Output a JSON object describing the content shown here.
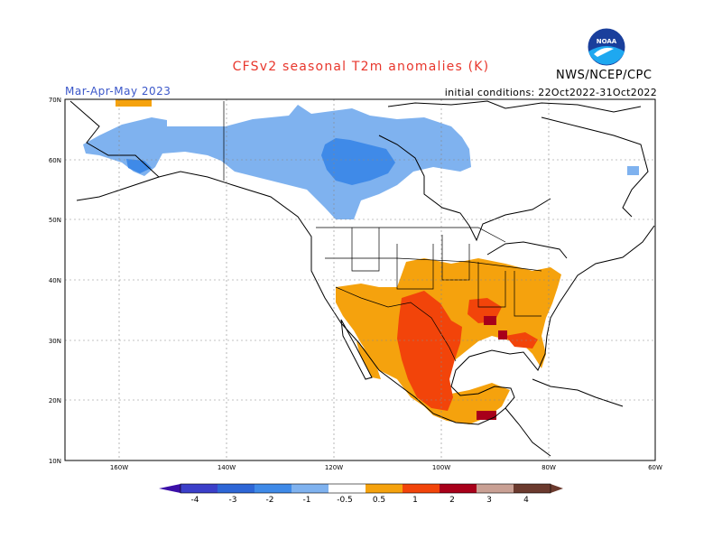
{
  "header": {
    "title": "CFSv2 seasonal T2m anomalies (K)",
    "season": "Mar-Apr-May 2023",
    "initial_conditions": "initial conditions: 22Oct2022-31Oct2022",
    "agency": "NWS/NCEP/CPC",
    "logo_text": "NOAA"
  },
  "map": {
    "lon_labels": [
      "160W",
      "140W",
      "120W",
      "100W",
      "80W",
      "60W"
    ],
    "lat_labels": [
      "70N",
      "60N",
      "50N",
      "40N",
      "30N",
      "20N",
      "10N"
    ],
    "lon_range": [
      -170,
      -60
    ],
    "lat_range": [
      10,
      70
    ],
    "grid": true,
    "anomaly_regions": [
      {
        "name": "Alaska and western Canada cool anomaly",
        "category": "-1 to -0.5",
        "color": "#7fb2ef"
      },
      {
        "name": "Central Canada stronger cool core",
        "category": "-2 to -1",
        "color": "#3f8ae8"
      },
      {
        "name": "Southern and eastern US warm anomaly",
        "category": "0.5 to 1",
        "color": "#f5a20d"
      },
      {
        "name": "Texas and northern Mexico warm core",
        "category": "1 to 2",
        "color": "#f2440a"
      },
      {
        "name": "Gulf coast and Yucatan strong warm spots",
        "category": "2 to 3",
        "color": "#a8001a"
      }
    ]
  },
  "colorbar": {
    "labels": [
      "-4",
      "-3",
      "-2",
      "-1",
      "-0.5",
      "0.5",
      "1",
      "2",
      "3",
      "4"
    ],
    "colors": [
      "#3b0fa8",
      "#3b3fc9",
      "#2d66d6",
      "#3f8ae8",
      "#7fb2ef",
      "#ffffff",
      "#f5a20d",
      "#f2440a",
      "#a8001a",
      "#c9a094",
      "#6b3a2e"
    ]
  }
}
